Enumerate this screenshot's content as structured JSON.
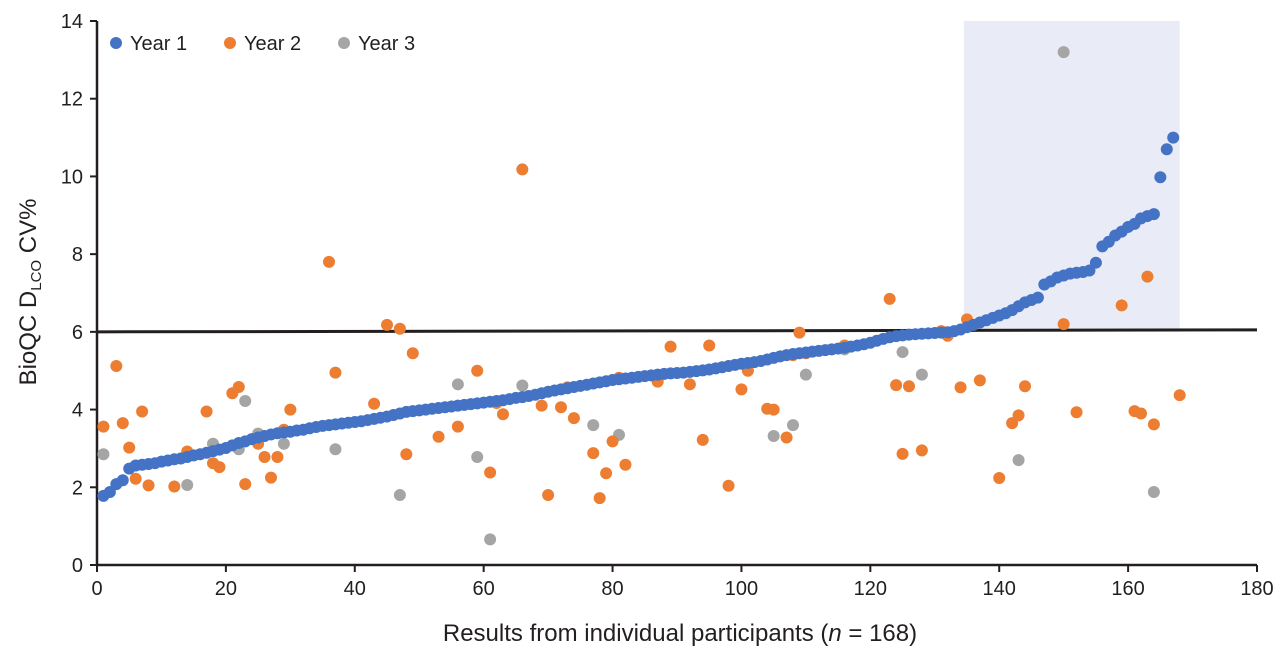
{
  "chart_data": {
    "type": "scatter",
    "xlabel": {
      "prefix": "Results from individual participants (",
      "italic": "n",
      "suffix": " = 168)"
    },
    "ylabel": {
      "prefix": "BioQC D",
      "subscript": "LCO",
      "suffix": " CV%"
    },
    "xlim": [
      0,
      180
    ],
    "ylim": [
      0,
      14
    ],
    "xticks": [
      0,
      20,
      40,
      60,
      80,
      100,
      120,
      140,
      160,
      180
    ],
    "yticks": [
      0,
      2,
      4,
      6,
      8,
      10,
      12,
      14
    ],
    "threshold_line": {
      "y": 6.0
    },
    "shaded_region": {
      "x": [
        134.5,
        168
      ],
      "y": [
        6,
        14
      ],
      "color": "#e9ecf6"
    },
    "legend_position": "top-left",
    "series": [
      {
        "name": "Year 1",
        "color": "#4472c4",
        "y": [
          1.78,
          1.88,
          2.08,
          2.18,
          2.48,
          2.56,
          2.58,
          2.6,
          2.62,
          2.66,
          2.69,
          2.72,
          2.74,
          2.78,
          2.82,
          2.85,
          2.89,
          2.93,
          2.97,
          3.01,
          3.08,
          3.14,
          3.18,
          3.24,
          3.28,
          3.32,
          3.36,
          3.39,
          3.41,
          3.43,
          3.46,
          3.48,
          3.52,
          3.55,
          3.58,
          3.6,
          3.62,
          3.64,
          3.66,
          3.68,
          3.7,
          3.73,
          3.76,
          3.79,
          3.82,
          3.86,
          3.9,
          3.94,
          3.96,
          3.98,
          4.0,
          4.02,
          4.04,
          4.06,
          4.08,
          4.1,
          4.12,
          4.14,
          4.16,
          4.18,
          4.2,
          4.22,
          4.24,
          4.27,
          4.3,
          4.32,
          4.35,
          4.38,
          4.42,
          4.46,
          4.49,
          4.52,
          4.55,
          4.58,
          4.61,
          4.64,
          4.67,
          4.7,
          4.73,
          4.76,
          4.78,
          4.8,
          4.82,
          4.84,
          4.86,
          4.88,
          4.9,
          4.92,
          4.93,
          4.94,
          4.95,
          4.97,
          4.99,
          5.01,
          5.03,
          5.06,
          5.09,
          5.12,
          5.15,
          5.18,
          5.2,
          5.22,
          5.25,
          5.29,
          5.33,
          5.37,
          5.4,
          5.43,
          5.45,
          5.47,
          5.49,
          5.51,
          5.53,
          5.55,
          5.57,
          5.59,
          5.62,
          5.65,
          5.68,
          5.72,
          5.77,
          5.82,
          5.86,
          5.89,
          5.91,
          5.93,
          5.94,
          5.95,
          5.96,
          5.97,
          5.98,
          5.99,
          6.02,
          6.06,
          6.12,
          6.18,
          6.24,
          6.3,
          6.36,
          6.42,
          6.48,
          6.56,
          6.66,
          6.76,
          6.82,
          6.88,
          7.22,
          7.3,
          7.4,
          7.45,
          7.5,
          7.52,
          7.54,
          7.58,
          7.78,
          8.2,
          8.32,
          8.48,
          8.58,
          8.7,
          8.78,
          8.92,
          8.98,
          9.03,
          9.98,
          10.7,
          11.0
        ]
      },
      {
        "name": "Year 2",
        "color": "#ed7d31",
        "points": [
          [
            1,
            3.56
          ],
          [
            3,
            5.12
          ],
          [
            4,
            3.65
          ],
          [
            5,
            3.02
          ],
          [
            6,
            2.22
          ],
          [
            7,
            3.95
          ],
          [
            8,
            2.05
          ],
          [
            12,
            2.02
          ],
          [
            14,
            2.92
          ],
          [
            17,
            3.95
          ],
          [
            18,
            2.62
          ],
          [
            19,
            2.52
          ],
          [
            21,
            4.42
          ],
          [
            22,
            4.58
          ],
          [
            23,
            2.08
          ],
          [
            25,
            3.12
          ],
          [
            26,
            2.78
          ],
          [
            27,
            2.25
          ],
          [
            28,
            2.78
          ],
          [
            29,
            3.48
          ],
          [
            30,
            4.0
          ],
          [
            36,
            7.8
          ],
          [
            37,
            4.95
          ],
          [
            43,
            4.15
          ],
          [
            45,
            6.18
          ],
          [
            47,
            6.08
          ],
          [
            48,
            2.85
          ],
          [
            49,
            5.45
          ],
          [
            53,
            3.3
          ],
          [
            56,
            3.56
          ],
          [
            59,
            5.0
          ],
          [
            61,
            2.38
          ],
          [
            62,
            4.17
          ],
          [
            63,
            3.88
          ],
          [
            66,
            10.18
          ],
          [
            69,
            4.1
          ],
          [
            70,
            1.8
          ],
          [
            72,
            4.06
          ],
          [
            73,
            4.57
          ],
          [
            74,
            3.78
          ],
          [
            77,
            2.88
          ],
          [
            78,
            1.72
          ],
          [
            79,
            2.36
          ],
          [
            80,
            3.18
          ],
          [
            81,
            4.82
          ],
          [
            82,
            2.58
          ],
          [
            87,
            4.72
          ],
          [
            89,
            5.62
          ],
          [
            92,
            4.65
          ],
          [
            94,
            3.22
          ],
          [
            95,
            5.65
          ],
          [
            98,
            2.04
          ],
          [
            100,
            4.52
          ],
          [
            101,
            5.0
          ],
          [
            104,
            4.02
          ],
          [
            105,
            4.0
          ],
          [
            107,
            3.28
          ],
          [
            108,
            5.4
          ],
          [
            109,
            5.98
          ],
          [
            110,
            5.45
          ],
          [
            116,
            5.65
          ],
          [
            123,
            6.85
          ],
          [
            124,
            4.63
          ],
          [
            125,
            2.86
          ],
          [
            126,
            4.6
          ],
          [
            128,
            2.95
          ],
          [
            131,
            6.02
          ],
          [
            132,
            5.9
          ],
          [
            134,
            4.57
          ],
          [
            135,
            6.32
          ],
          [
            137,
            4.75
          ],
          [
            140,
            2.24
          ],
          [
            142,
            3.65
          ],
          [
            143,
            3.85
          ],
          [
            144,
            4.6
          ],
          [
            150,
            6.2
          ],
          [
            152,
            3.93
          ],
          [
            159,
            6.68
          ],
          [
            161,
            3.96
          ],
          [
            162,
            3.9
          ],
          [
            163,
            7.42
          ],
          [
            164,
            3.62
          ],
          [
            168,
            4.37
          ]
        ]
      },
      {
        "name": "Year 3",
        "color": "#a5a5a5",
        "points": [
          [
            1,
            2.85
          ],
          [
            14,
            2.06
          ],
          [
            18,
            3.12
          ],
          [
            22,
            2.98
          ],
          [
            23,
            4.22
          ],
          [
            25,
            3.38
          ],
          [
            29,
            3.12
          ],
          [
            37,
            2.98
          ],
          [
            47,
            1.8
          ],
          [
            56,
            4.65
          ],
          [
            59,
            2.78
          ],
          [
            61,
            0.66
          ],
          [
            66,
            4.62
          ],
          [
            77,
            3.6
          ],
          [
            81,
            3.35
          ],
          [
            105,
            3.32
          ],
          [
            108,
            3.6
          ],
          [
            110,
            4.9
          ],
          [
            116,
            5.55
          ],
          [
            125,
            5.48
          ],
          [
            128,
            4.9
          ],
          [
            143,
            2.7
          ],
          [
            150,
            13.2
          ],
          [
            164,
            1.88
          ]
        ]
      }
    ]
  }
}
